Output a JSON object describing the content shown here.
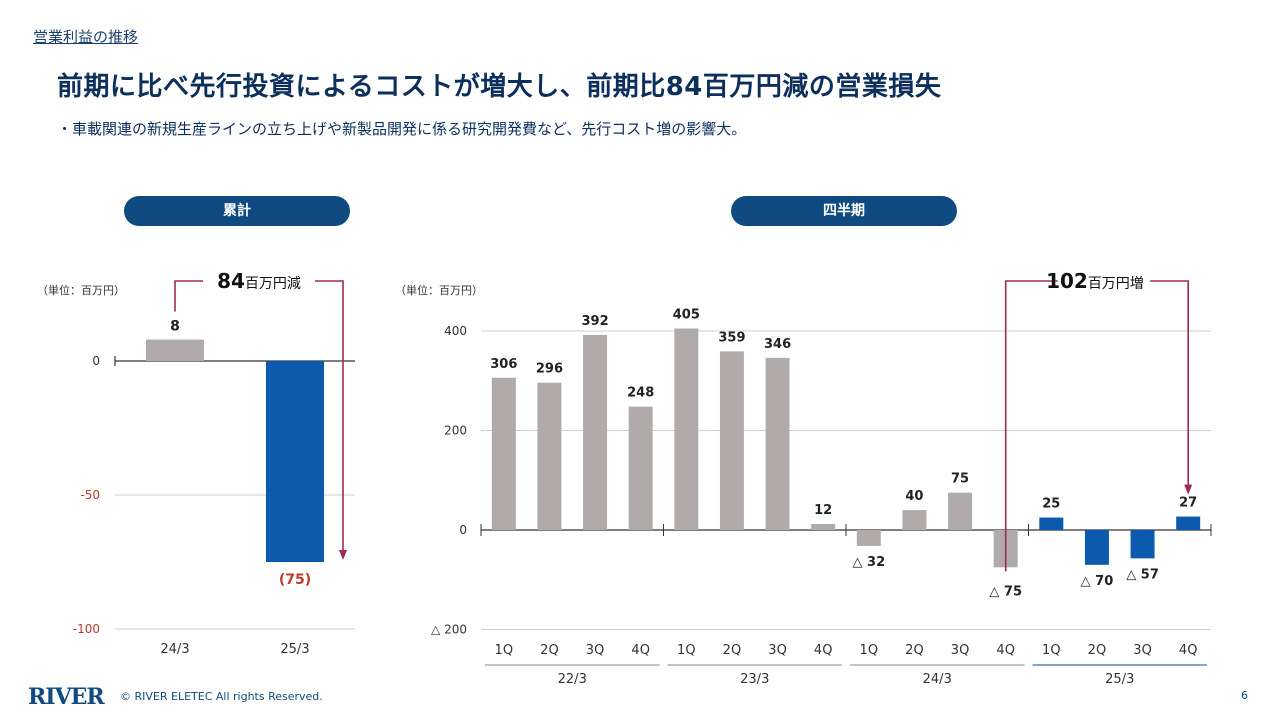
{
  "header": {
    "section": "営業利益の推移",
    "title": "前期に比べ先行投資によるコストが増大し、前期比84百万円減の営業損失",
    "subtitle": "・車載関連の新規生産ラインの立ち上げや新製品開発に係る研究開発費など、先行コスト増の影響大。"
  },
  "panels": {
    "left_title": "累計",
    "right_title": "四半期"
  },
  "colors": {
    "navy": "#0f4a80",
    "bar_gray": "#b0abaa",
    "bar_blue": "#0b5aad",
    "arrow": "#9b2a5a",
    "negative_label": "#c0392b"
  },
  "chart_data": [
    {
      "type": "bar",
      "title": "累計",
      "unit_label": "（単位：百万円）",
      "categories": [
        "24/3",
        "25/3"
      ],
      "values": [
        8,
        -75
      ],
      "data_labels": [
        "8",
        "(75)"
      ],
      "yticks": [
        0,
        -50,
        -100
      ],
      "ytick_labels": [
        "0",
        "-50",
        "-100"
      ],
      "ylim": [
        -100,
        0
      ],
      "annotation": {
        "value": "84",
        "unit": "百万円減",
        "from": "24/3",
        "to": "25/3"
      },
      "bar_colors": [
        "gray",
        "blue"
      ],
      "grid": true
    },
    {
      "type": "bar",
      "title": "四半期",
      "unit_label": "（単位：百万円）",
      "categories": [
        "1Q",
        "2Q",
        "3Q",
        "4Q",
        "1Q",
        "2Q",
        "3Q",
        "4Q",
        "1Q",
        "2Q",
        "3Q",
        "4Q",
        "1Q",
        "2Q",
        "3Q",
        "4Q"
      ],
      "groups": [
        "22/3",
        "23/3",
        "24/3",
        "25/3"
      ],
      "values": [
        306,
        296,
        392,
        248,
        405,
        359,
        346,
        12,
        -32,
        40,
        75,
        -75,
        25,
        -70,
        -57,
        27
      ],
      "data_labels": [
        "306",
        "296",
        "392",
        "248",
        "405",
        "359",
        "346",
        "12",
        "△ 32",
        "40",
        "75",
        "△ 75",
        "25",
        "△ 70",
        "△ 57",
        "27"
      ],
      "yticks": [
        400,
        200,
        0,
        -200
      ],
      "ytick_labels": [
        "400",
        "200",
        "0",
        "△ 200"
      ],
      "ylim": [
        -200,
        400
      ],
      "annotation": {
        "value": "102",
        "unit": "百万円増",
        "from_index": 11,
        "to_index": 15
      },
      "grid": true
    }
  ],
  "footer": {
    "logo": "RIVER",
    "copyright": "© RIVER ELETEC All rights Reserved.",
    "page": "6"
  }
}
